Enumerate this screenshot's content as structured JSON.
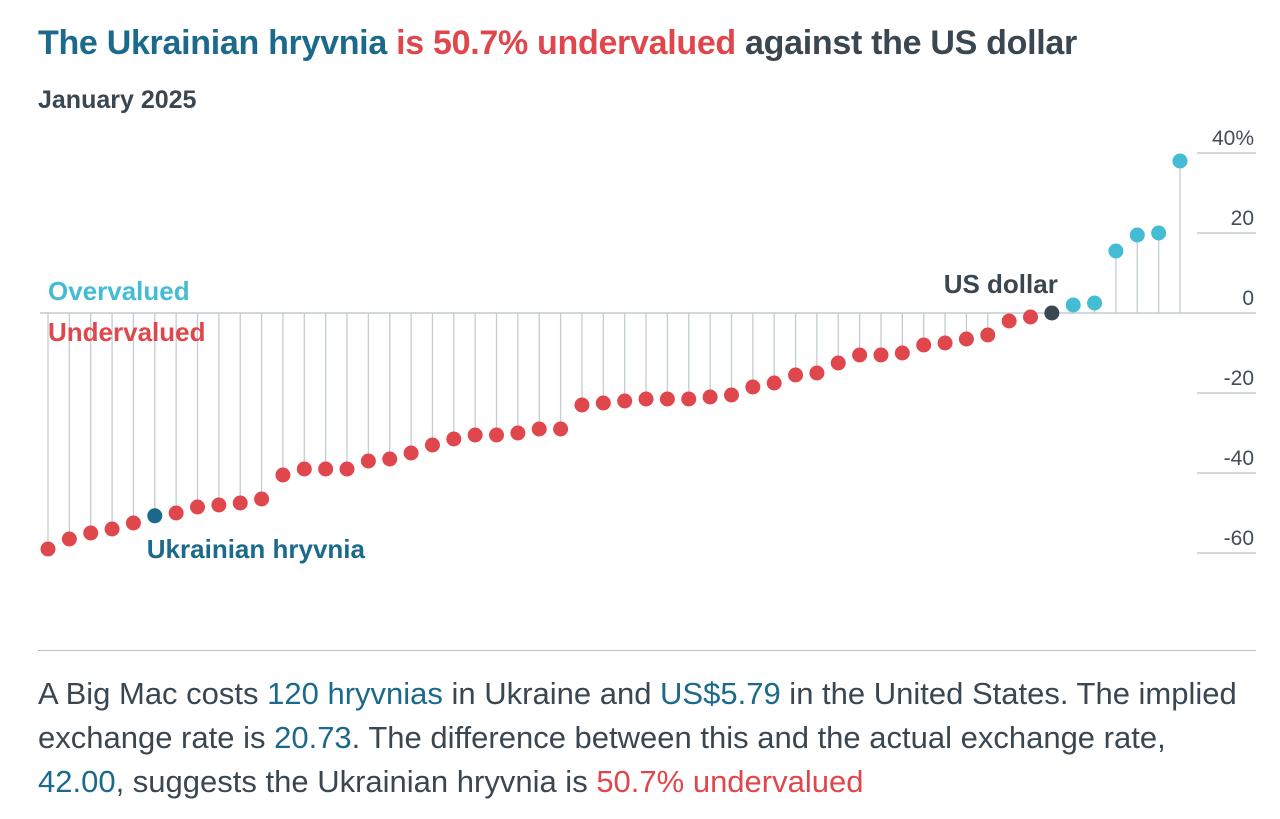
{
  "title": {
    "part1": "The Ukrainian hryvnia",
    "part2": " is 50.7% undervalued",
    "part3": " against the US dollar"
  },
  "subtitle": "January 2025",
  "colors": {
    "overvalued": "#44bdd4",
    "undervalued": "#e0474c",
    "highlight": "#1b6a8c",
    "base": "#3a4650",
    "stem": "#c3ccd3",
    "axis": "#b8c1c8"
  },
  "chart_data": {
    "type": "lollipop",
    "ylim": [
      -60,
      40
    ],
    "yticks": [
      {
        "value": 40,
        "label": "40%"
      },
      {
        "value": 20,
        "label": "20"
      },
      {
        "value": 0,
        "label": "0"
      },
      {
        "value": -20,
        "label": "-20"
      },
      {
        "value": -40,
        "label": "-40"
      },
      {
        "value": -60,
        "label": "-60"
      }
    ],
    "values": [
      -59,
      -56.5,
      -55,
      -54,
      -52.5,
      -50.7,
      -50,
      -48.5,
      -48,
      -47.5,
      -46.5,
      -40.5,
      -39,
      -39,
      -39,
      -37,
      -36.5,
      -35,
      -33,
      -31.5,
      -30.5,
      -30.5,
      -30,
      -29,
      -29,
      -23,
      -22.5,
      -22,
      -21.5,
      -21.5,
      -21.5,
      -21,
      -20.5,
      -18.5,
      -17.5,
      -15.5,
      -15,
      -12.5,
      -10.5,
      -10.5,
      -10,
      -8,
      -7.5,
      -6.5,
      -5.5,
      -2,
      -1,
      0,
      2,
      2.5,
      15.5,
      19.5,
      20,
      38
    ],
    "labels": {
      "overvalued": "Overvalued",
      "undervalued": "Undervalued",
      "us_dollar": "US dollar",
      "hryvnia": "Ukrainian hryvnia"
    },
    "highlight_index": 5,
    "base_index": 47
  },
  "caption": {
    "t1": "A Big Mac costs ",
    "v1": "120 hryvnias",
    "t2": " in Ukraine and ",
    "v2": "US$5.79",
    "t3": " in the United States. The implied exchange rate is ",
    "v3": "20.73",
    "t4": ". The difference between this and the actual exchange rate, ",
    "v4": "42.00",
    "t5": ", suggests the Ukrainian hryvnia is ",
    "v5": "50.7% undervalued"
  }
}
